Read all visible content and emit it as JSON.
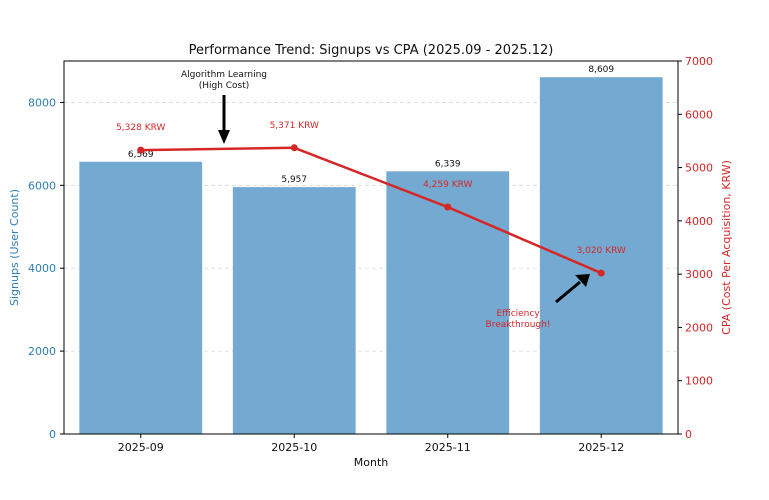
{
  "chart_data": {
    "type": "bar+line",
    "title": "Performance Trend: Signups vs CPA (2025.09 - 2025.12)",
    "xlabel": "Month",
    "ylabel_left": "Signups (User Count)",
    "ylabel_right": "CPA (Cost Per Acquisition, KRW)",
    "categories": [
      "2025-09",
      "2025-10",
      "2025-11",
      "2025-12"
    ],
    "ylim_left": [
      0,
      9000
    ],
    "ylim_right": [
      0,
      7000
    ],
    "yticks_left": [
      0,
      2000,
      4000,
      6000,
      8000
    ],
    "yticks_right": [
      0,
      1000,
      2000,
      3000,
      4000,
      5000,
      6000,
      7000
    ],
    "series": [
      {
        "name": "Signups",
        "type": "bar",
        "axis": "left",
        "values": [
          6569,
          5957,
          6339,
          8609
        ],
        "labels": [
          "6,569",
          "5,957",
          "6,339",
          "8,609"
        ]
      },
      {
        "name": "CPA",
        "type": "line",
        "axis": "right",
        "values": [
          5328,
          5371,
          4259,
          3020
        ],
        "labels": [
          "5,328 KRW",
          "5,371 KRW",
          "4,259 KRW",
          "3,020 KRW"
        ]
      }
    ],
    "annotations": [
      {
        "lines": [
          "Algorithm Learning",
          "(High Cost)"
        ],
        "target": "between 2025-09 and 2025-10"
      },
      {
        "lines": [
          "Efficiency",
          "Breakthrough!"
        ],
        "target": "2025-12 CPA point"
      }
    ],
    "colors": {
      "bar": "#74aad1",
      "line": "#d62728",
      "left_axis": "#2f7fb5",
      "right_axis": "#d62728",
      "grid": "#d9d9d9",
      "arrow": "#000000"
    },
    "grid": true
  }
}
